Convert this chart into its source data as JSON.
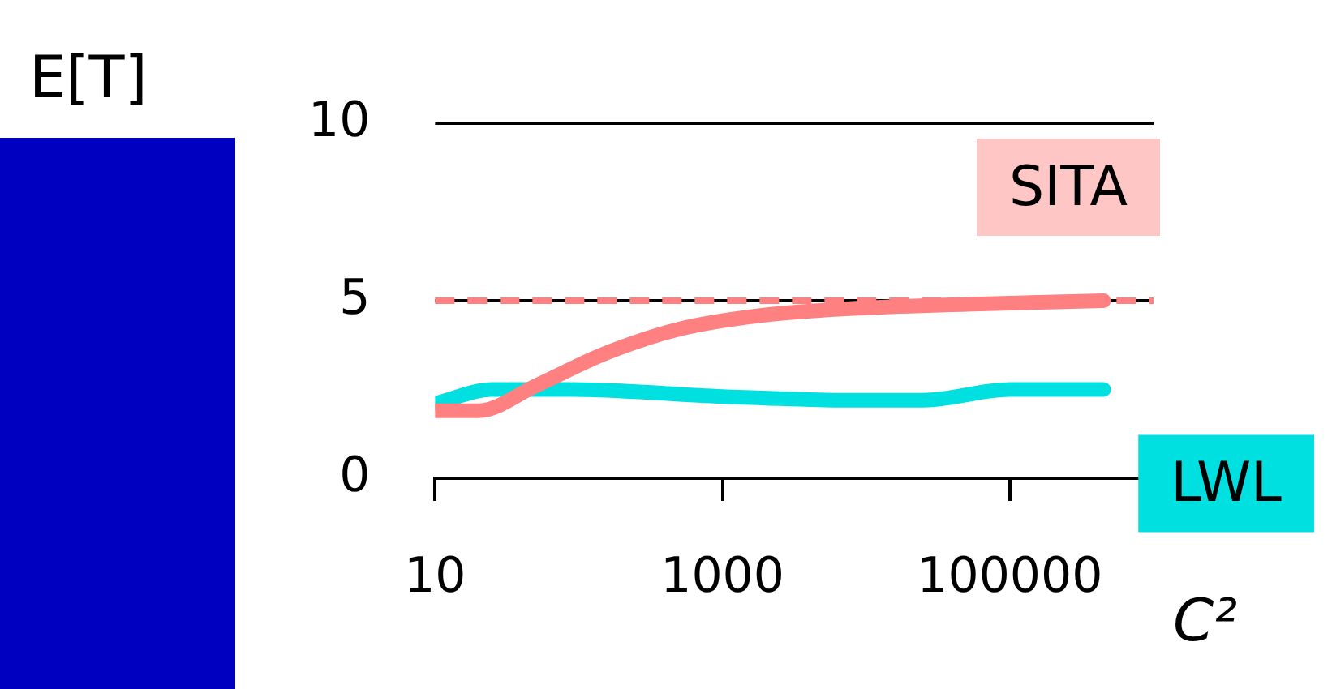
{
  "chart_data": {
    "type": "line",
    "xlabel": "C²",
    "ylabel": "E[T]",
    "log": "x",
    "xlim": [
      10,
      1000000
    ],
    "xticks": [
      10,
      1000,
      100000
    ],
    "ylim": [
      0,
      10
    ],
    "yticks": [
      0,
      5,
      10
    ],
    "legend": false,
    "series": [
      {
        "name": "SITA",
        "color": "#ff8080",
        "x": [
          10,
          20,
          50,
          150,
          500,
          2000,
          10000,
          50000,
          450000
        ],
        "values": [
          1.9,
          1.9,
          2.6,
          3.5,
          4.2,
          4.6,
          4.8,
          4.9,
          5
        ]
      },
      {
        "name": "LWL",
        "color": "#00e0e0",
        "x": [
          10,
          25,
          90,
          1000,
          7000,
          25000,
          100000,
          450000
        ],
        "values": [
          2.1,
          2.5,
          2.5,
          2.3,
          2.2,
          2.2,
          2.5,
          2.5
        ]
      }
    ],
    "ref_lines": [
      {
        "axis": "y",
        "value": 10,
        "color": "#000000",
        "line_style": "solid"
      },
      {
        "axis": "y",
        "value": 5,
        "color": "#000000",
        "line_style": "solid"
      },
      {
        "axis": "y",
        "value": 5,
        "color": "#ff8080",
        "line_style": "dashed"
      }
    ]
  }
}
